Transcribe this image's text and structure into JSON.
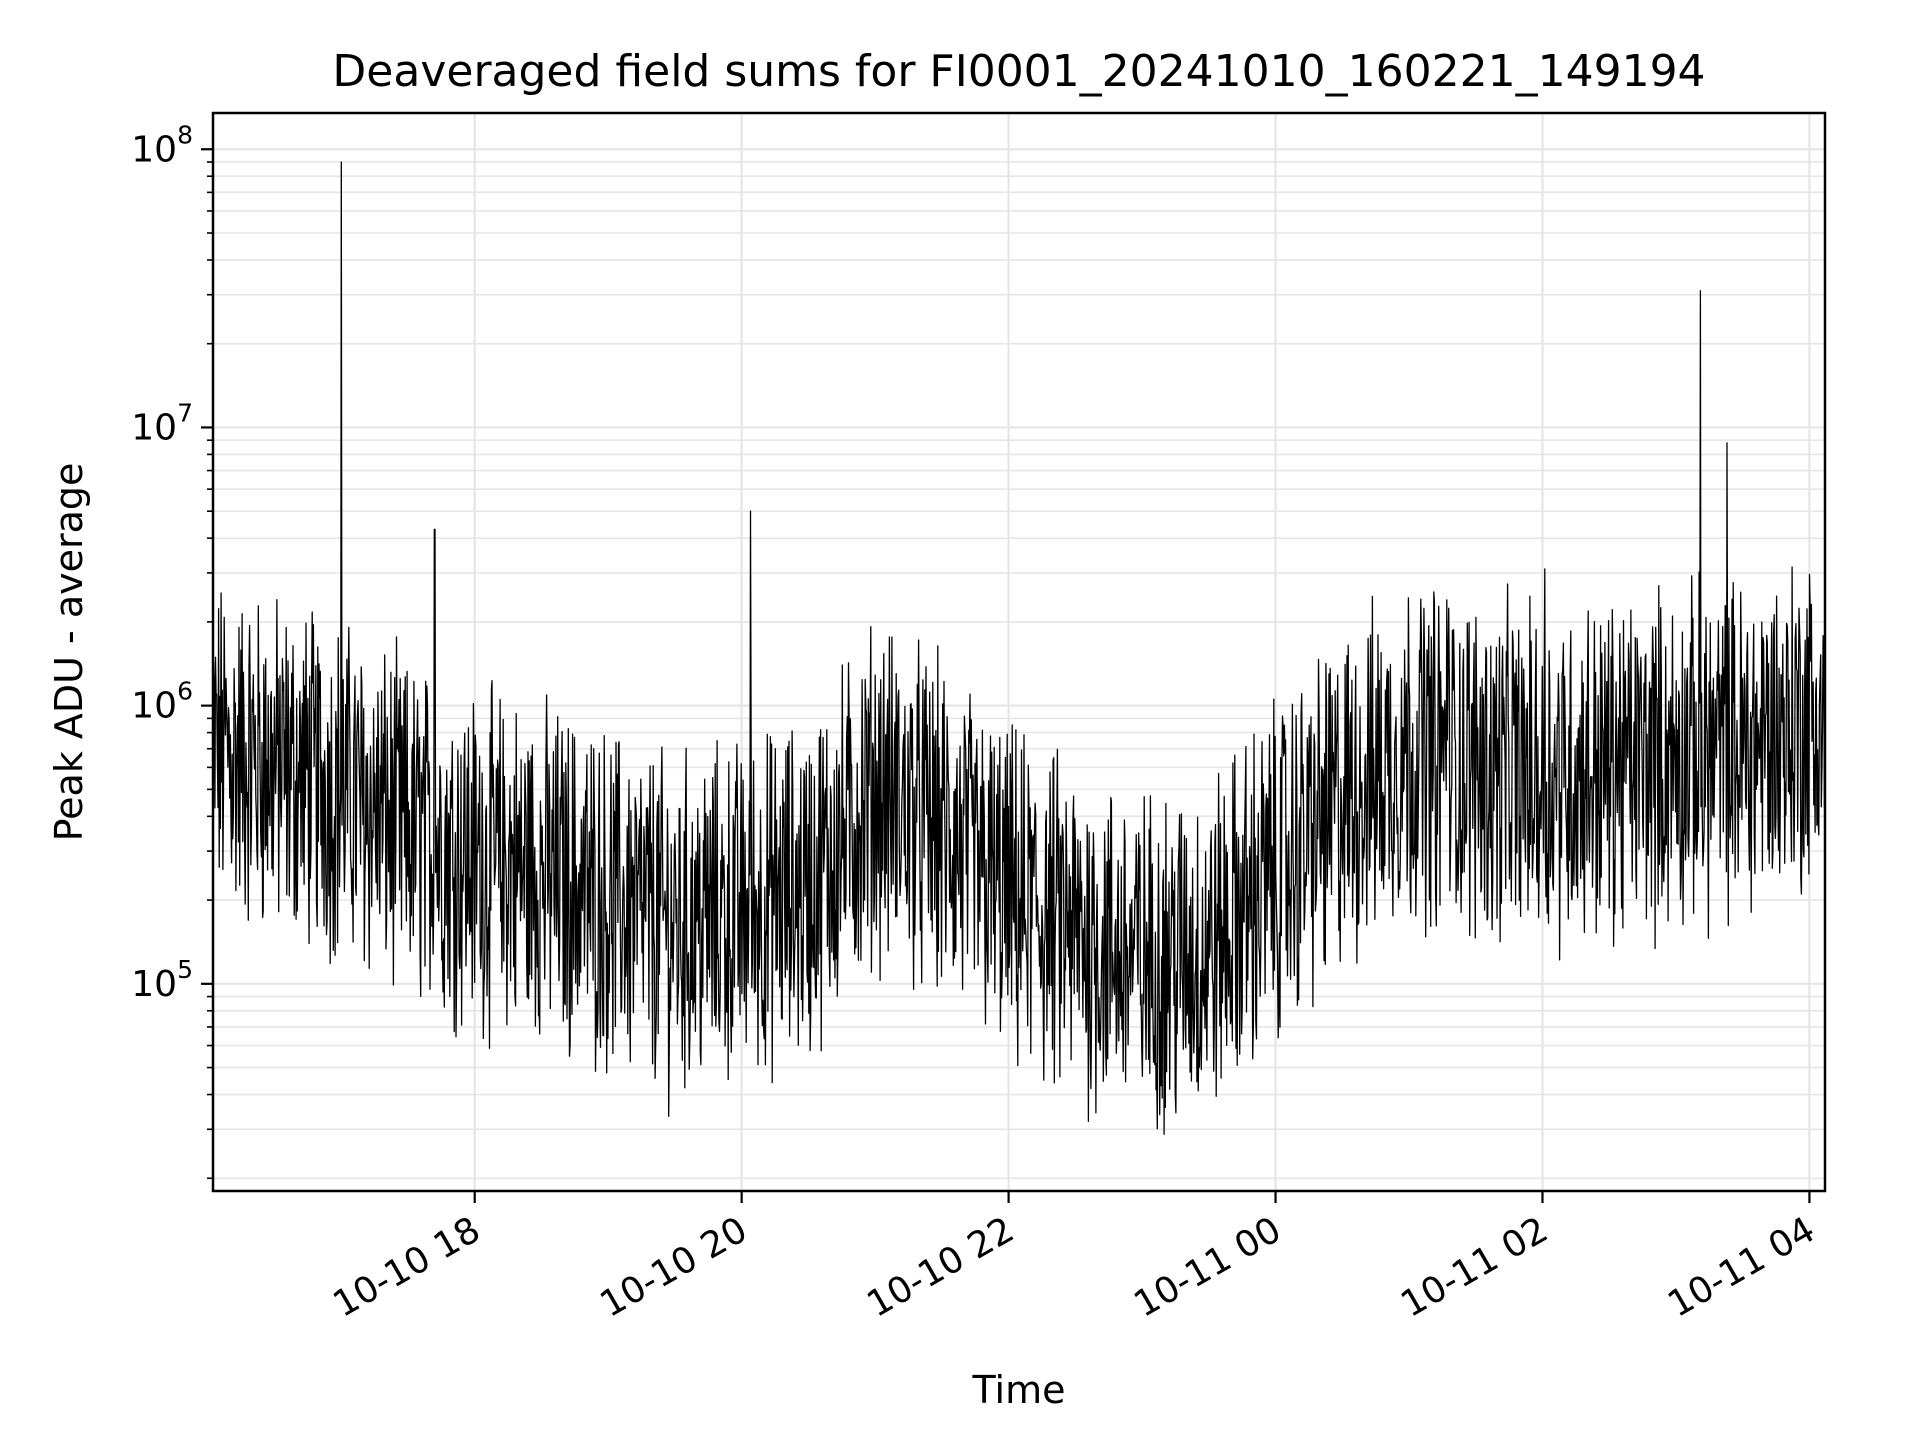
{
  "chart_data": {
    "type": "line",
    "title": "Deaveraged field sums for FI0001_20241010_160221_149194",
    "xlabel": "Time",
    "ylabel": "Peak ADU - average",
    "yscale": "log",
    "xlim": [
      "2024-10-10 16:02:21",
      "2024-10-11 04:07:00"
    ],
    "ylim": [
      18000,
      135000000
    ],
    "grid": true,
    "line_color": "#000000",
    "grid_color": "#e6e6e6",
    "x_ticks": [
      {
        "label": "10-10 18",
        "t": "2024-10-10 18:00"
      },
      {
        "label": "10-10 20",
        "t": "2024-10-10 20:00"
      },
      {
        "label": "10-10 22",
        "t": "2024-10-10 22:00"
      },
      {
        "label": "10-11 00",
        "t": "2024-10-11 00:00"
      },
      {
        "label": "10-11 02",
        "t": "2024-10-11 02:00"
      },
      {
        "label": "10-11 04",
        "t": "2024-10-11 04:00"
      }
    ],
    "y_ticks": [
      {
        "base": "10",
        "exp": "5",
        "value": 100000
      },
      {
        "base": "10",
        "exp": "6",
        "value": 1000000
      },
      {
        "base": "10",
        "exp": "7",
        "value": 10000000
      },
      {
        "base": "10",
        "exp": "8",
        "value": 100000000
      }
    ],
    "series": [
      {
        "style": "line",
        "samples_note": "dense noisy series; envelope summarized by hourly typical level and spikes",
        "x": [
          "2024-10-10 16:02",
          "2024-10-10 16:30",
          "2024-10-10 17:00",
          "2024-10-10 17:30",
          "2024-10-10 18:00",
          "2024-10-10 18:30",
          "2024-10-10 19:00",
          "2024-10-10 19:30",
          "2024-10-10 20:00",
          "2024-10-10 20:30",
          "2024-10-10 21:00",
          "2024-10-10 21:30",
          "2024-10-10 22:00",
          "2024-10-10 22:30",
          "2024-10-10 23:00",
          "2024-10-10 23:30",
          "2024-10-11 00:00",
          "2024-10-11 00:30",
          "2024-10-11 01:00",
          "2024-10-11 01:30",
          "2024-10-11 02:00",
          "2024-10-11 02:30",
          "2024-10-11 03:00",
          "2024-10-11 03:30",
          "2024-10-11 04:00",
          "2024-10-11 04:07"
        ],
        "y": [
          700000,
          600000,
          500000,
          350000,
          280000,
          250000,
          200000,
          160000,
          180000,
          220000,
          500000,
          350000,
          200000,
          150000,
          120000,
          130000,
          250000,
          450000,
          700000,
          600000,
          550000,
          600000,
          650000,
          700000,
          900000,
          800000
        ],
        "spikes": [
          {
            "t": "2024-10-10 17:00",
            "y": 90000000
          },
          {
            "t": "2024-10-10 17:42",
            "y": 4300000
          },
          {
            "t": "2024-10-10 20:04",
            "y": 5000000
          },
          {
            "t": "2024-10-11 03:11",
            "y": 31000000
          },
          {
            "t": "2024-10-11 03:23",
            "y": 8800000
          },
          {
            "t": "2024-10-11 02:01",
            "y": 3100000
          },
          {
            "t": "2024-10-11 01:17",
            "y": 2400000
          }
        ]
      }
    ]
  }
}
